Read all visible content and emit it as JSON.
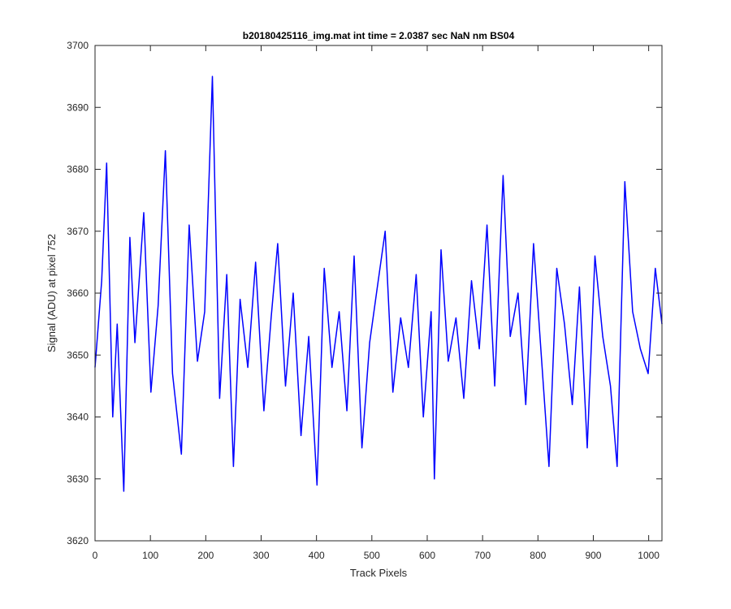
{
  "chart_data": {
    "type": "line",
    "title": "b20180425116_img.mat int time = 2.0387 sec  NaN nm BS04",
    "xlabel": "Track Pixels",
    "ylabel": "Signal (ADU) at pixel 752",
    "xlim": [
      0,
      1024
    ],
    "ylim": [
      3620,
      3700
    ],
    "xticks": [
      0,
      100,
      200,
      300,
      400,
      500,
      600,
      700,
      800,
      900,
      1000
    ],
    "yticks": [
      3620,
      3630,
      3640,
      3650,
      3660,
      3670,
      3680,
      3690,
      3700
    ],
    "grid": false,
    "legend": "none",
    "line_color": "#0000ff",
    "series": [
      {
        "x": [
          0,
          12,
          21,
          32,
          40,
          52,
          63,
          72,
          88,
          101,
          114,
          127,
          140,
          156,
          170,
          185,
          198,
          212,
          225,
          238,
          250,
          262,
          276,
          290,
          305,
          318,
          330,
          344,
          358,
          372,
          386,
          401,
          414,
          428,
          441,
          455,
          468,
          482,
          496,
          510,
          524,
          538,
          552,
          566,
          580,
          593,
          607,
          613,
          625,
          638,
          652,
          666,
          680,
          694,
          708,
          722,
          737,
          750,
          764,
          778,
          792,
          806,
          820,
          834,
          848,
          862,
          875,
          889,
          903,
          917,
          931,
          943,
          957,
          971,
          985,
          999,
          1012,
          1024
        ],
        "y": [
          3648,
          3662,
          3681,
          3640,
          3655,
          3628,
          3669,
          3652,
          3673,
          3644,
          3658,
          3683,
          3647,
          3634,
          3671,
          3649,
          3657,
          3695,
          3643,
          3663,
          3632,
          3659,
          3648,
          3665,
          3641,
          3656,
          3668,
          3645,
          3660,
          3637,
          3653,
          3629,
          3664,
          3648,
          3657,
          3641,
          3666,
          3635,
          3652,
          3661,
          3670,
          3644,
          3656,
          3648,
          3663,
          3640,
          3657,
          3630,
          3667,
          3649,
          3656,
          3643,
          3662,
          3651,
          3671,
          3645,
          3679,
          3653,
          3660,
          3642,
          3668,
          3650,
          3632,
          3664,
          3655,
          3642,
          3661,
          3635,
          3666,
          3653,
          3645,
          3632,
          3678,
          3657,
          3651,
          3647,
          3664,
          3655
        ]
      }
    ]
  }
}
